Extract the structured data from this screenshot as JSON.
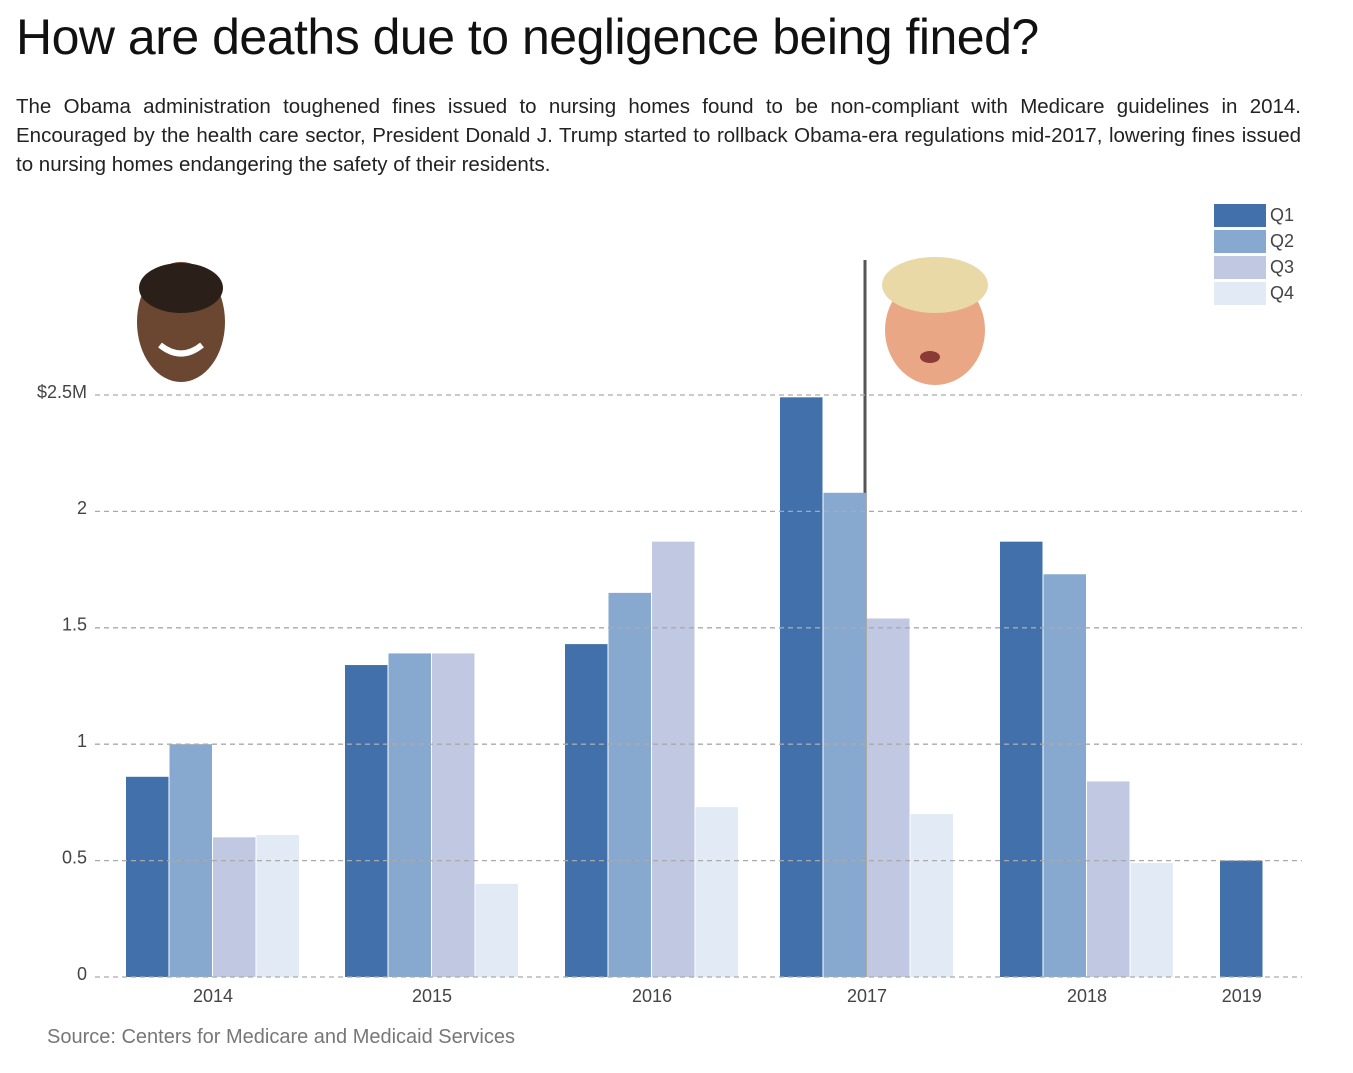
{
  "chart_data": {
    "type": "bar",
    "title": "How are deaths due to negligence being fined?",
    "subtitle": "The Obama administration toughened fines issued to nursing homes found to be non-compliant with Medicare guidelines in 2014. Encouraged by the health care sector, President Donald J. Trump started to rollback Obama-era regulations mid-2017, lowering fines issued to nursing homes endangering the safety of their residents.",
    "source": "Source: Centers for Medicare and Medicaid Services",
    "categories": [
      "2014",
      "2015",
      "2016",
      "2017",
      "2018",
      "2019"
    ],
    "series": [
      {
        "name": "Q1",
        "color": "#4170aa",
        "values": [
          0.86,
          1.34,
          1.43,
          2.49,
          1.87,
          0.5
        ]
      },
      {
        "name": "Q2",
        "color": "#87a9cf",
        "values": [
          1.0,
          1.39,
          1.65,
          2.08,
          1.73,
          null
        ]
      },
      {
        "name": "Q3",
        "color": "#c0c8e2",
        "values": [
          0.6,
          1.39,
          1.87,
          1.54,
          0.84,
          null
        ]
      },
      {
        "name": "Q4",
        "color": "#e2ebf5",
        "values": [
          0.61,
          0.4,
          0.73,
          0.7,
          0.49,
          null
        ]
      }
    ],
    "ylim": [
      0,
      2.5
    ],
    "yticks": [
      0,
      0.5,
      1,
      1.5,
      2,
      {
        "value": 2.5,
        "label": "$2.5M"
      }
    ],
    "grid": true,
    "legend": "top-right"
  }
}
